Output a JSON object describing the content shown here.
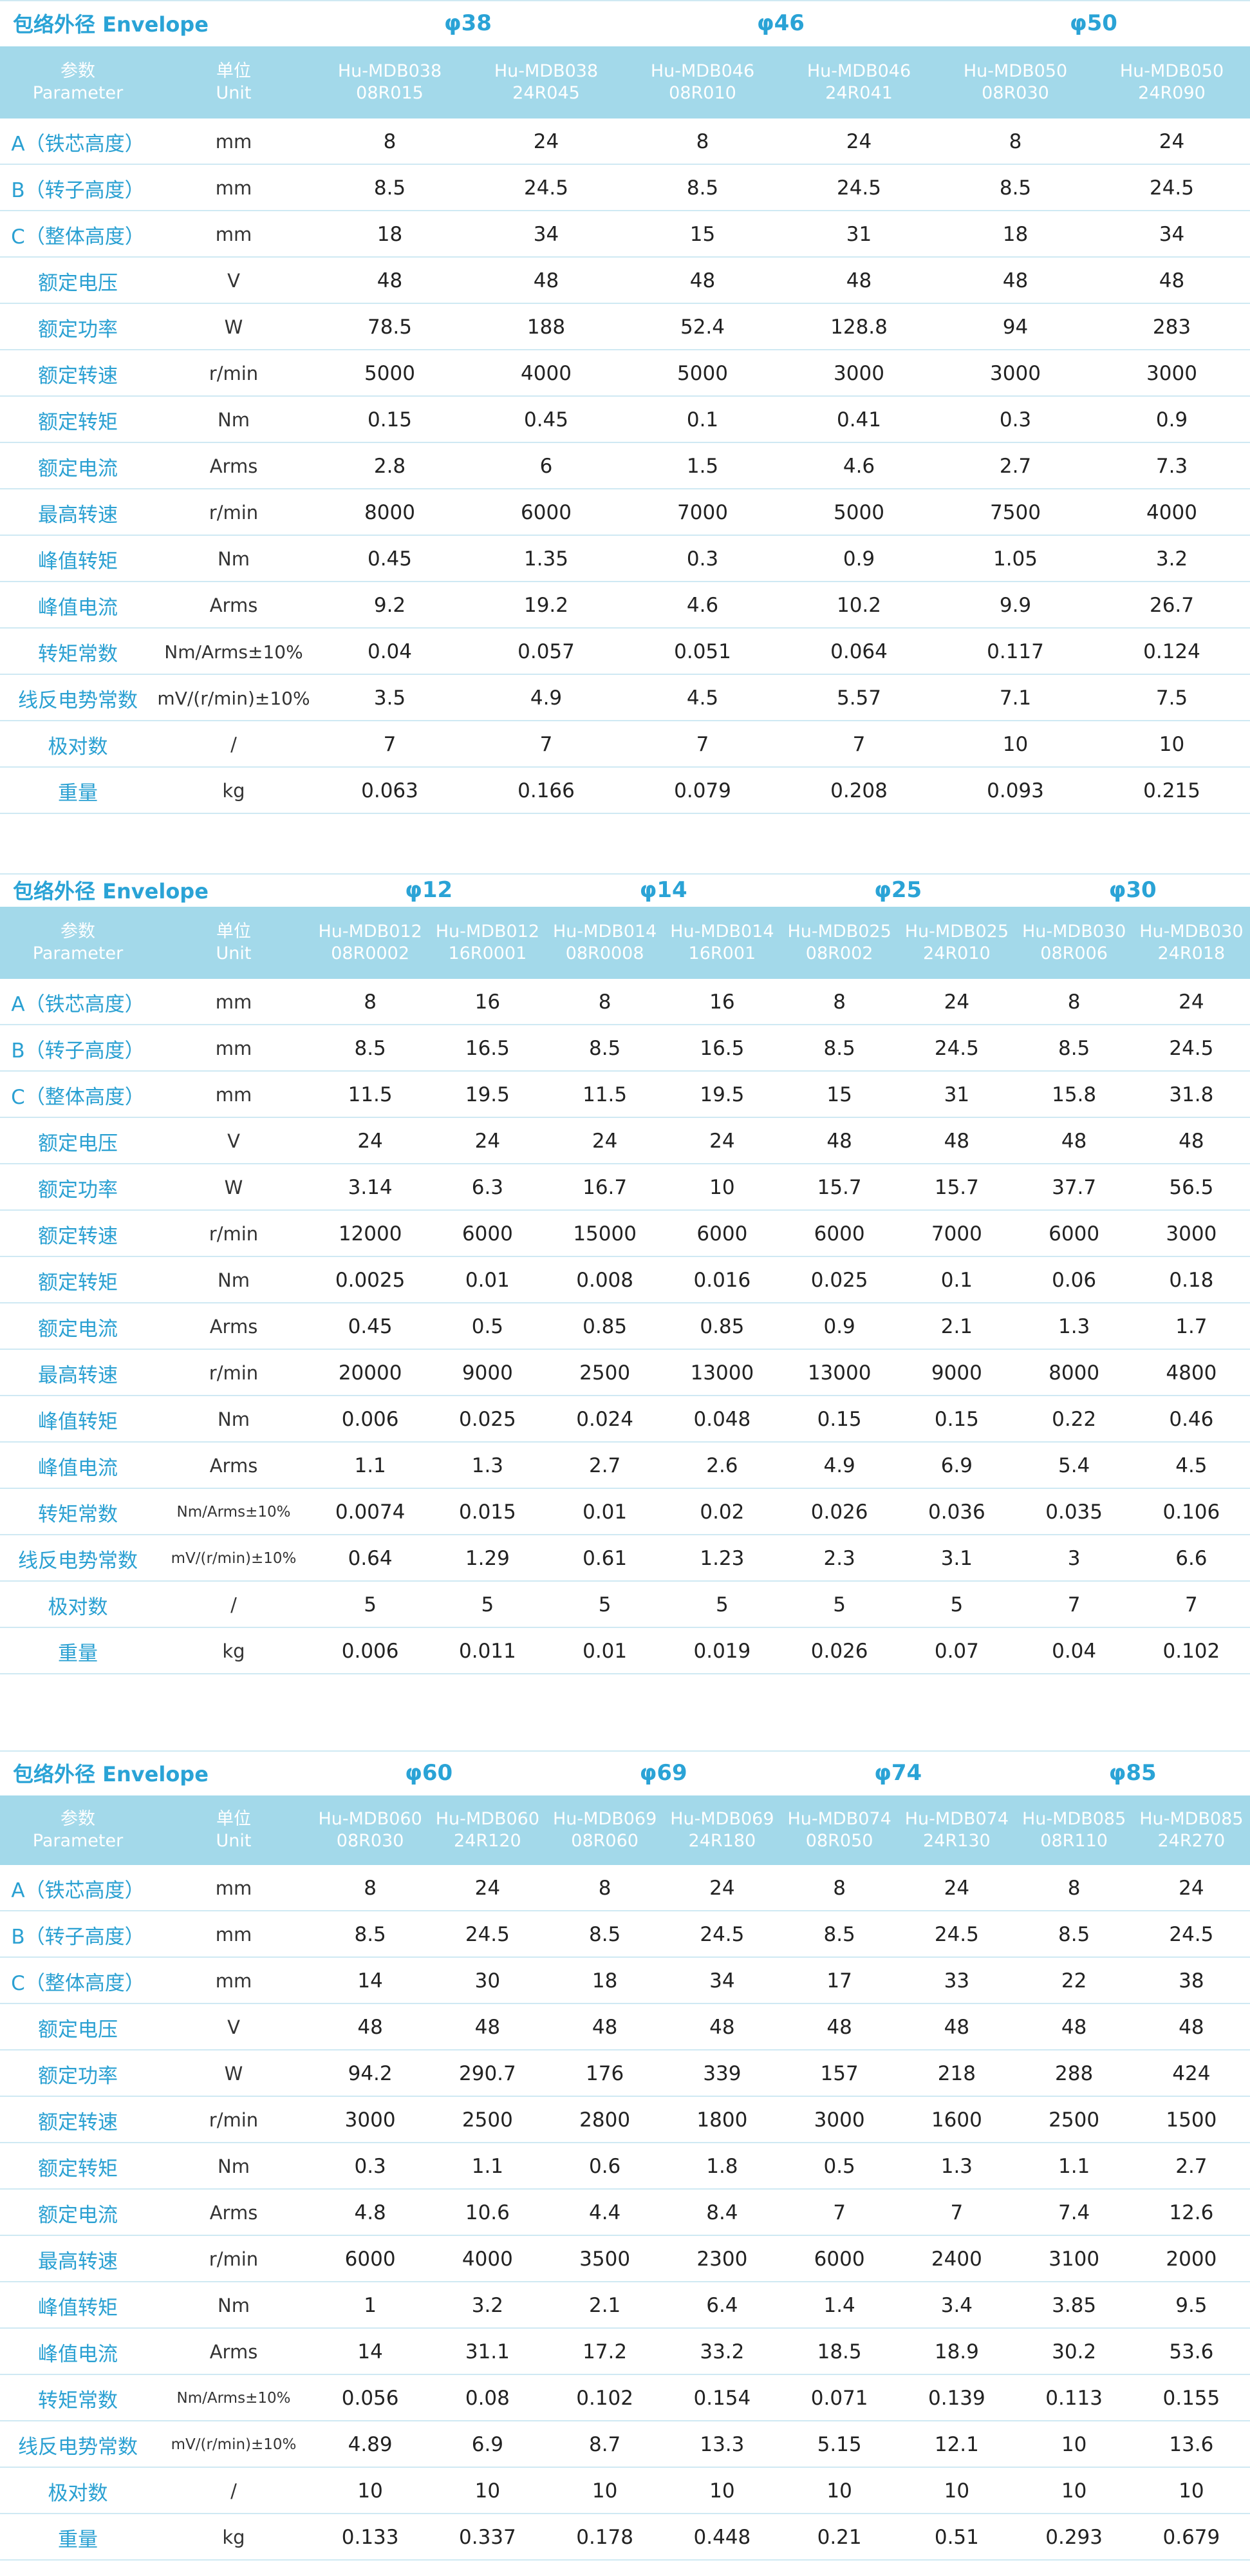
{
  "tables": [
    {
      "envelope_label": "包络外径 Envelope",
      "groups": [
        "φ38",
        "φ46",
        "φ50"
      ],
      "header": {
        "param": "参数",
        "param_en": "Parameter",
        "unit": "单位",
        "unit_en": "Unit"
      },
      "models": [
        [
          "Hu-MDB038",
          "08R015"
        ],
        [
          "Hu-MDB038",
          "24R045"
        ],
        [
          "Hu-MDB046",
          "08R010"
        ],
        [
          "Hu-MDB046",
          "24R041"
        ],
        [
          "Hu-MDB050",
          "08R030"
        ],
        [
          "Hu-MDB050",
          "24R090"
        ]
      ],
      "rows": [
        [
          "A（铁芯高度）",
          "mm",
          "8",
          "24",
          "8",
          "24",
          "8",
          "24"
        ],
        [
          "B（转子高度）",
          "mm",
          "8.5",
          "24.5",
          "8.5",
          "24.5",
          "8.5",
          "24.5"
        ],
        [
          "C（整体高度）",
          "mm",
          "18",
          "34",
          "15",
          "31",
          "18",
          "34"
        ],
        [
          "额定电压",
          "V",
          "48",
          "48",
          "48",
          "48",
          "48",
          "48"
        ],
        [
          "额定功率",
          "W",
          "78.5",
          "188",
          "52.4",
          "128.8",
          "94",
          "283"
        ],
        [
          "额定转速",
          "r/min",
          "5000",
          "4000",
          "5000",
          "3000",
          "3000",
          "3000"
        ],
        [
          "额定转矩",
          "Nm",
          "0.15",
          "0.45",
          "0.1",
          "0.41",
          "0.3",
          "0.9"
        ],
        [
          "额定电流",
          "Arms",
          "2.8",
          "6",
          "1.5",
          "4.6",
          "2.7",
          "7.3"
        ],
        [
          "最高转速",
          "r/min",
          "8000",
          "6000",
          "7000",
          "5000",
          "7500",
          "4000"
        ],
        [
          "峰值转矩",
          "Nm",
          "0.45",
          "1.35",
          "0.3",
          "0.9",
          "1.05",
          "3.2"
        ],
        [
          "峰值电流",
          "Arms",
          "9.2",
          "19.2",
          "4.6",
          "10.2",
          "9.9",
          "26.7"
        ],
        [
          "转矩常数",
          "Nm/Arms±10%",
          "0.04",
          "0.057",
          "0.051",
          "0.064",
          "0.117",
          "0.124"
        ],
        [
          "线反电势常数",
          "mV/(r/min)±10%",
          "3.5",
          "4.9",
          "4.5",
          "5.57",
          "7.1",
          "7.5"
        ],
        [
          "极对数",
          "/",
          "7",
          "7",
          "7",
          "7",
          "10",
          "10"
        ],
        [
          "重量",
          "kg",
          "0.063",
          "0.166",
          "0.079",
          "0.208",
          "0.093",
          "0.215"
        ]
      ]
    },
    {
      "envelope_label": "包络外径 Envelope",
      "groups": [
        "φ12",
        "φ14",
        "φ25",
        "φ30"
      ],
      "header": {
        "param": "参数",
        "param_en": "Parameter",
        "unit": "单位",
        "unit_en": "Unit"
      },
      "models": [
        [
          "Hu-MDB012",
          "08R0002"
        ],
        [
          "Hu-MDB012",
          "16R0001"
        ],
        [
          "Hu-MDB014",
          "08R0008"
        ],
        [
          "Hu-MDB014",
          "16R001"
        ],
        [
          "Hu-MDB025",
          "08R002"
        ],
        [
          "Hu-MDB025",
          "24R010"
        ],
        [
          "Hu-MDB030",
          "08R006"
        ],
        [
          "Hu-MDB030",
          "24R018"
        ]
      ],
      "rows": [
        [
          "A（铁芯高度）",
          "mm",
          "8",
          "16",
          "8",
          "16",
          "8",
          "24",
          "8",
          "24"
        ],
        [
          "B（转子高度）",
          "mm",
          "8.5",
          "16.5",
          "8.5",
          "16.5",
          "8.5",
          "24.5",
          "8.5",
          "24.5"
        ],
        [
          "C（整体高度）",
          "mm",
          "11.5",
          "19.5",
          "11.5",
          "19.5",
          "15",
          "31",
          "15.8",
          "31.8"
        ],
        [
          "额定电压",
          "V",
          "24",
          "24",
          "24",
          "24",
          "48",
          "48",
          "48",
          "48"
        ],
        [
          "额定功率",
          "W",
          "3.14",
          "6.3",
          "16.7",
          "10",
          "15.7",
          "15.7",
          "37.7",
          "56.5"
        ],
        [
          "额定转速",
          "r/min",
          "12000",
          "6000",
          "15000",
          "6000",
          "6000",
          "7000",
          "6000",
          "3000"
        ],
        [
          "额定转矩",
          "Nm",
          "0.0025",
          "0.01",
          "0.008",
          "0.016",
          "0.025",
          "0.1",
          "0.06",
          "0.18"
        ],
        [
          "额定电流",
          "Arms",
          "0.45",
          "0.5",
          "0.85",
          "0.85",
          "0.9",
          "2.1",
          "1.3",
          "1.7"
        ],
        [
          "最高转速",
          "r/min",
          "20000",
          "9000",
          "2500",
          "13000",
          "13000",
          "9000",
          "8000",
          "4800"
        ],
        [
          "峰值转矩",
          "Nm",
          "0.006",
          "0.025",
          "0.024",
          "0.048",
          "0.15",
          "0.15",
          "0.22",
          "0.46"
        ],
        [
          "峰值电流",
          "Arms",
          "1.1",
          "1.3",
          "2.7",
          "2.6",
          "4.9",
          "6.9",
          "5.4",
          "4.5"
        ],
        [
          "转矩常数",
          "Nm/Arms±10%",
          "0.0074",
          "0.015",
          "0.01",
          "0.02",
          "0.026",
          "0.036",
          "0.035",
          "0.106"
        ],
        [
          "线反电势常数",
          "mV/(r/min)±10%",
          "0.64",
          "1.29",
          "0.61",
          "1.23",
          "2.3",
          "3.1",
          "3",
          "6.6"
        ],
        [
          "极对数",
          "/",
          "5",
          "5",
          "5",
          "5",
          "5",
          "5",
          "7",
          "7"
        ],
        [
          "重量",
          "kg",
          "0.006",
          "0.011",
          "0.01",
          "0.019",
          "0.026",
          "0.07",
          "0.04",
          "0.102"
        ]
      ]
    },
    {
      "envelope_label": "包络外径 Envelope",
      "groups": [
        "φ60",
        "φ69",
        "φ74",
        "φ85"
      ],
      "header": {
        "param": "参数",
        "param_en": "Parameter",
        "unit": "单位",
        "unit_en": "Unit"
      },
      "models": [
        [
          "Hu-MDB060",
          "08R030"
        ],
        [
          "Hu-MDB060",
          "24R120"
        ],
        [
          "Hu-MDB069",
          "08R060"
        ],
        [
          "Hu-MDB069",
          "24R180"
        ],
        [
          "Hu-MDB074",
          "08R050"
        ],
        [
          "Hu-MDB074",
          "24R130"
        ],
        [
          "Hu-MDB085",
          "08R110"
        ],
        [
          "Hu-MDB085",
          "24R270"
        ]
      ],
      "rows": [
        [
          "A（铁芯高度）",
          "mm",
          "8",
          "24",
          "8",
          "24",
          "8",
          "24",
          "8",
          "24"
        ],
        [
          "B（转子高度）",
          "mm",
          "8.5",
          "24.5",
          "8.5",
          "24.5",
          "8.5",
          "24.5",
          "8.5",
          "24.5"
        ],
        [
          "C（整体高度）",
          "mm",
          "14",
          "30",
          "18",
          "34",
          "17",
          "33",
          "22",
          "38"
        ],
        [
          "额定电压",
          "V",
          "48",
          "48",
          "48",
          "48",
          "48",
          "48",
          "48",
          "48"
        ],
        [
          "额定功率",
          "W",
          "94.2",
          "290.7",
          "176",
          "339",
          "157",
          "218",
          "288",
          "424"
        ],
        [
          "额定转速",
          "r/min",
          "3000",
          "2500",
          "2800",
          "1800",
          "3000",
          "1600",
          "2500",
          "1500"
        ],
        [
          "额定转矩",
          "Nm",
          "0.3",
          "1.1",
          "0.6",
          "1.8",
          "0.5",
          "1.3",
          "1.1",
          "2.7"
        ],
        [
          "额定电流",
          "Arms",
          "4.8",
          "10.6",
          "4.4",
          "8.4",
          "7",
          "7",
          "7.4",
          "12.6"
        ],
        [
          "最高转速",
          "r/min",
          "6000",
          "4000",
          "3500",
          "2300",
          "6000",
          "2400",
          "3100",
          "2000"
        ],
        [
          "峰值转矩",
          "Nm",
          "1",
          "3.2",
          "2.1",
          "6.4",
          "1.4",
          "3.4",
          "3.85",
          "9.5"
        ],
        [
          "峰值电流",
          "Arms",
          "14",
          "31.1",
          "17.2",
          "33.2",
          "18.5",
          "18.9",
          "30.2",
          "53.6"
        ],
        [
          "转矩常数",
          "Nm/Arms±10%",
          "0.056",
          "0.08",
          "0.102",
          "0.154",
          "0.071",
          "0.139",
          "0.113",
          "0.155"
        ],
        [
          "线反电势常数",
          "mV/(r/min)±10%",
          "4.89",
          "6.9",
          "8.7",
          "13.3",
          "5.15",
          "12.1",
          "10",
          "13.6"
        ],
        [
          "极对数",
          "/",
          "10",
          "10",
          "10",
          "10",
          "10",
          "10",
          "10",
          "10"
        ],
        [
          "重量",
          "kg",
          "0.133",
          "0.337",
          "0.178",
          "0.448",
          "0.21",
          "0.51",
          "0.293",
          "0.679"
        ]
      ]
    }
  ]
}
